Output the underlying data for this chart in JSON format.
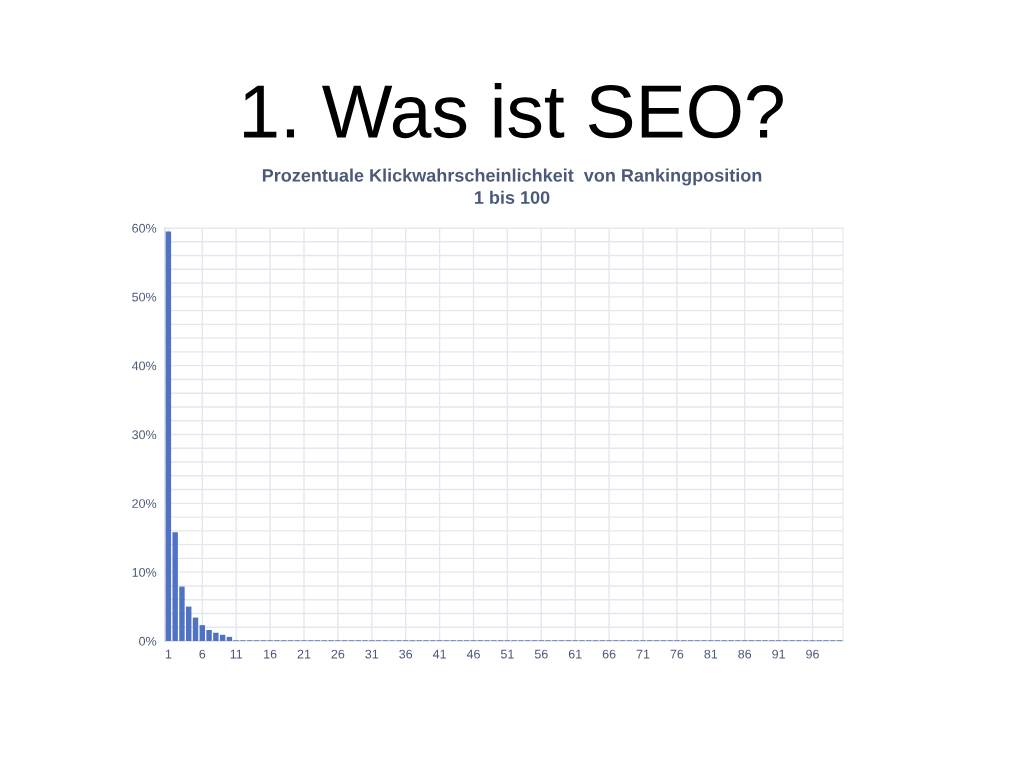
{
  "chart_data": {
    "type": "bar",
    "title": "1. Was ist SEO?",
    "subtitle": "Prozentuale Klickwahrscheinlichkeit  von Rankingposition\n1 bis 100",
    "categories": [
      "1",
      null,
      null,
      null,
      null,
      "6",
      null,
      null,
      null,
      null,
      "11",
      null,
      null,
      null,
      null,
      "16",
      null,
      null,
      null,
      null,
      "21",
      null,
      null,
      null,
      null,
      "26",
      null,
      null,
      null,
      null,
      "31",
      null,
      null,
      null,
      null,
      "36",
      null,
      null,
      null,
      null,
      "41",
      null,
      null,
      null,
      null,
      "46",
      null,
      null,
      null,
      null,
      "51",
      null,
      null,
      null,
      null,
      "56",
      null,
      null,
      null,
      null,
      "61",
      null,
      null,
      null,
      null,
      "66",
      null,
      null,
      null,
      null,
      "71",
      null,
      null,
      null,
      null,
      "76",
      null,
      null,
      null,
      null,
      "81",
      null,
      null,
      null,
      null,
      "86",
      null,
      null,
      null,
      null,
      "91",
      null,
      null,
      null,
      null,
      "96",
      null,
      null,
      null,
      null
    ],
    "values": [
      59.5,
      15.8,
      7.9,
      5.0,
      3.4,
      2.3,
      1.6,
      1.2,
      0.9,
      0.6,
      0.1,
      0.1,
      0.1,
      0.1,
      0.1,
      0.1,
      0.1,
      0.1,
      0.1,
      0.1,
      0.1,
      0.1,
      0.1,
      0.1,
      0.1,
      0.1,
      0.1,
      0.1,
      0.1,
      0.1,
      0.1,
      0.1,
      0.1,
      0.1,
      0.1,
      0.1,
      0.1,
      0.1,
      0.1,
      0.1,
      0.1,
      0.1,
      0.1,
      0.1,
      0.1,
      0.1,
      0.1,
      0.1,
      0.1,
      0.1,
      0.1,
      0.1,
      0.1,
      0.1,
      0.1,
      0.1,
      0.1,
      0.1,
      0.1,
      0.1,
      0.1,
      0.1,
      0.1,
      0.1,
      0.1,
      0.1,
      0.1,
      0.1,
      0.1,
      0.1,
      0.1,
      0.1,
      0.1,
      0.1,
      0.1,
      0.1,
      0.1,
      0.1,
      0.1,
      0.1,
      0.1,
      0.1,
      0.1,
      0.1,
      0.1,
      0.1,
      0.1,
      0.1,
      0.1,
      0.1,
      0.1,
      0.1,
      0.1,
      0.1,
      0.1,
      0.1,
      0.1,
      0.1,
      0.1,
      0.1
    ],
    "color": "#4f72c4",
    "ylim": [
      0,
      60
    ],
    "yticks": [
      {
        "value": 0,
        "label": "0%"
      },
      {
        "value": 2,
        "label": null
      },
      {
        "value": 4,
        "label": null
      },
      {
        "value": 6,
        "label": null
      },
      {
        "value": 8,
        "label": null
      },
      {
        "value": 10,
        "label": "10%"
      },
      {
        "value": 12,
        "label": null
      },
      {
        "value": 14,
        "label": null
      },
      {
        "value": 16,
        "label": null
      },
      {
        "value": 18,
        "label": null
      },
      {
        "value": 20,
        "label": "20%"
      },
      {
        "value": 22,
        "label": null
      },
      {
        "value": 24,
        "label": null
      },
      {
        "value": 26,
        "label": null
      },
      {
        "value": 28,
        "label": null
      },
      {
        "value": 30,
        "label": "30%"
      },
      {
        "value": 32,
        "label": null
      },
      {
        "value": 34,
        "label": null
      },
      {
        "value": 36,
        "label": null
      },
      {
        "value": 38,
        "label": null
      },
      {
        "value": 40,
        "label": "40%"
      },
      {
        "value": 42,
        "label": null
      },
      {
        "value": 44,
        "label": null
      },
      {
        "value": 46,
        "label": null
      },
      {
        "value": 48,
        "label": null
      },
      {
        "value": 50,
        "label": "50%"
      },
      {
        "value": 52,
        "label": null
      },
      {
        "value": 54,
        "label": null
      },
      {
        "value": 56,
        "label": null
      },
      {
        "value": 58,
        "label": null
      },
      {
        "value": 60,
        "label": "60%"
      }
    ],
    "grid": true
  }
}
